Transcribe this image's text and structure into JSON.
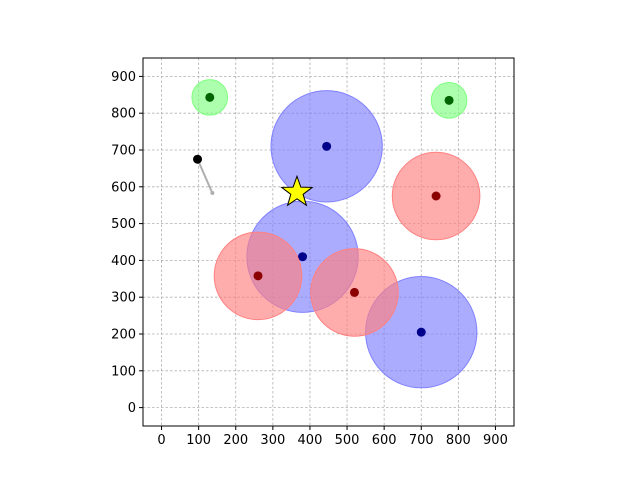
{
  "chart_data": {
    "type": "scatter",
    "title": "",
    "xlabel": "",
    "ylabel": "",
    "xlim": [
      -50,
      950
    ],
    "ylim": [
      -50,
      950
    ],
    "grid": true,
    "xticks": [
      0,
      100,
      200,
      300,
      400,
      500,
      600,
      700,
      800,
      900
    ],
    "yticks": [
      0,
      100,
      200,
      300,
      400,
      500,
      600,
      700,
      800,
      900
    ],
    "zones": [
      {
        "kind": "blue",
        "x": 445,
        "y": 710,
        "r": 150
      },
      {
        "kind": "blue",
        "x": 380,
        "y": 410,
        "r": 150
      },
      {
        "kind": "blue",
        "x": 700,
        "y": 205,
        "r": 150
      },
      {
        "kind": "red",
        "x": 740,
        "y": 575,
        "r": 118
      },
      {
        "kind": "red",
        "x": 260,
        "y": 358,
        "r": 118
      },
      {
        "kind": "red",
        "x": 520,
        "y": 313,
        "r": 118
      },
      {
        "kind": "green",
        "x": 130,
        "y": 843,
        "r": 48
      },
      {
        "kind": "green",
        "x": 775,
        "y": 835,
        "r": 48
      }
    ],
    "agent": {
      "x": 97,
      "y": 675,
      "heading_to": {
        "x": 137,
        "y": 583
      }
    },
    "goal": {
      "x": 365,
      "y": 585
    },
    "colors": {
      "blue_fill": "#8080ff",
      "blue_center": "#00008b",
      "red_fill": "#ff8080",
      "red_center": "#8b0000",
      "green_fill": "#80ff80",
      "green_center": "#006400",
      "agent": "#000000",
      "heading": "#b0b0b0",
      "goal_fill": "#ffff00",
      "goal_stroke": "#000000"
    }
  }
}
